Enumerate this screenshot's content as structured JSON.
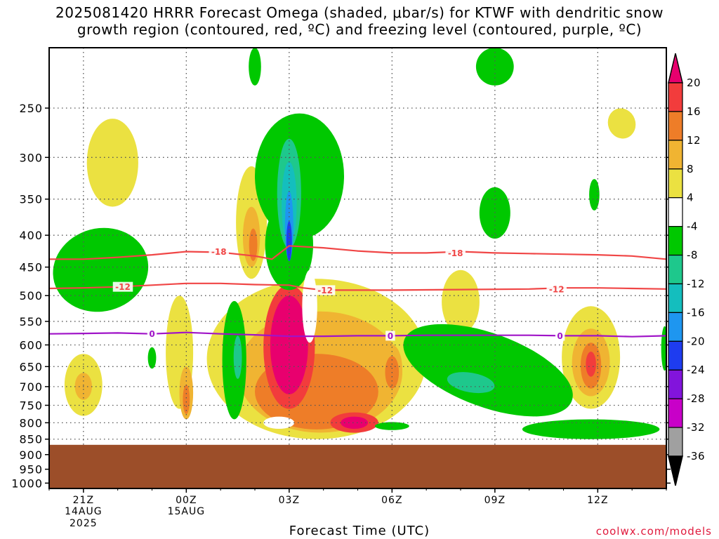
{
  "title": {
    "line1": "2025081420 HRRR Forecast Omega (shaded, μbar/s) for KTWF with dendritic snow",
    "line2": "growth region (contoured, red, ºC) and freezing level (contoured, purple, ºC)"
  },
  "x_axis_title": "Forecast Time (UTC)",
  "credit": "coolwx.com/models",
  "chart_data": {
    "type": "heatmap",
    "x_ticks": [
      {
        "label": "21Z",
        "sub1": "14AUG",
        "sub2": "2025",
        "hour": 0
      },
      {
        "label": "00Z",
        "sub1": "15AUG",
        "sub2": "",
        "hour": 3
      },
      {
        "label": "03Z",
        "sub1": "",
        "sub2": "",
        "hour": 6
      },
      {
        "label": "06Z",
        "sub1": "",
        "sub2": "",
        "hour": 9
      },
      {
        "label": "09Z",
        "sub1": "",
        "sub2": "",
        "hour": 12
      },
      {
        "label": "12Z",
        "sub1": "",
        "sub2": "",
        "hour": 15
      }
    ],
    "x_range_hours": [
      -1,
      17
    ],
    "y_ticks": [
      250,
      300,
      350,
      400,
      450,
      500,
      550,
      600,
      650,
      700,
      750,
      800,
      850,
      900,
      950,
      1000
    ],
    "y_range_hpa": [
      200,
      1020
    ],
    "log_pressure_axis": true,
    "surface_pressure_hpa": 868,
    "colorbar": {
      "labels": [
        "20",
        "16",
        "12",
        "8",
        "4",
        "-4",
        "-8",
        "-12",
        "-16",
        "-20",
        "-24",
        "-28",
        "-32",
        "-36"
      ],
      "colors": [
        "#e8006e",
        "#f23c3c",
        "#ee7d28",
        "#f0b432",
        "#ebe141",
        "#ffffff",
        "#00c800",
        "#1ec88c",
        "#14bebe",
        "#1e96f0",
        "#1e3cf0",
        "#8214dc",
        "#c800c8",
        "#a0a0a0",
        "#000000"
      ]
    },
    "isotherm_labels": {
      "minus18": "-18",
      "minus12": "-12",
      "zero": "0"
    },
    "isotherms": [
      {
        "value": -18,
        "color": "#f04646",
        "points": [
          [
            -1,
            437
          ],
          [
            0,
            437
          ],
          [
            1,
            434
          ],
          [
            2,
            430
          ],
          [
            3,
            425
          ],
          [
            4,
            426
          ],
          [
            5,
            432
          ],
          [
            5.5,
            437
          ],
          [
            6,
            416
          ],
          [
            7,
            419
          ],
          [
            8,
            424
          ],
          [
            9,
            427
          ],
          [
            10,
            427
          ],
          [
            11,
            425
          ],
          [
            12,
            427
          ],
          [
            13,
            428
          ],
          [
            14,
            429
          ],
          [
            15,
            430
          ],
          [
            16,
            432
          ],
          [
            17,
            437
          ]
        ]
      },
      {
        "value": -12,
        "color": "#f04646",
        "points": [
          [
            -1,
            487
          ],
          [
            0,
            486
          ],
          [
            1,
            484
          ],
          [
            2,
            481
          ],
          [
            3,
            478
          ],
          [
            4,
            478
          ],
          [
            5,
            480
          ],
          [
            6,
            481
          ],
          [
            6.4,
            486
          ],
          [
            7,
            490
          ],
          [
            9,
            490
          ],
          [
            11,
            489
          ],
          [
            13,
            488
          ],
          [
            14,
            486
          ],
          [
            15,
            486
          ],
          [
            16,
            487
          ],
          [
            17,
            488
          ]
        ]
      },
      {
        "value": 0,
        "color": "#a014c8",
        "points": [
          [
            -1,
            576
          ],
          [
            0,
            575
          ],
          [
            1,
            574
          ],
          [
            2,
            576
          ],
          [
            3,
            573
          ],
          [
            4,
            576
          ],
          [
            5,
            578
          ],
          [
            6,
            581
          ],
          [
            7,
            581
          ],
          [
            8,
            580
          ],
          [
            9,
            580
          ],
          [
            10,
            579
          ],
          [
            11,
            579
          ],
          [
            12,
            579
          ],
          [
            13,
            579
          ],
          [
            14,
            580
          ],
          [
            15,
            580
          ],
          [
            16,
            582
          ],
          [
            17,
            580
          ]
        ]
      }
    ],
    "isotherm_label_positions": [
      {
        "key": "minus18",
        "hour": 3.95,
        "p": 425
      },
      {
        "key": "minus18",
        "hour": 10.85,
        "p": 427
      },
      {
        "key": "minus12",
        "hour": 1.15,
        "p": 484
      },
      {
        "key": "minus12",
        "hour": 7.05,
        "p": 490
      },
      {
        "key": "minus12",
        "hour": 13.8,
        "p": 488
      },
      {
        "key": "zero",
        "hour": 2.0,
        "p": 576
      },
      {
        "key": "zero",
        "hour": 8.95,
        "p": 580
      },
      {
        "key": "zero",
        "hour": 13.9,
        "p": 580
      }
    ],
    "omega_features": [
      {
        "value": 4,
        "hour": 0.85,
        "p": 310,
        "rh": 0.75,
        "rp": 50,
        "rot": 0
      },
      {
        "value": 4,
        "hour": 2.8,
        "p": 630,
        "rh": 0.4,
        "rp": 130,
        "rot": 0
      },
      {
        "value": 4,
        "hour": 0.0,
        "p": 700,
        "rh": 0.55,
        "rp": 80,
        "rot": 0
      },
      {
        "value": 8,
        "hour": 0.0,
        "p": 700,
        "rh": 0.25,
        "rp": 35,
        "rot": 0
      },
      {
        "value": 8,
        "hour": 3.0,
        "p": 720,
        "rh": 0.2,
        "rp": 70,
        "rot": 0
      },
      {
        "value": 12,
        "hour": 3.0,
        "p": 735,
        "rh": 0.1,
        "rp": 40,
        "rot": 0
      },
      {
        "value": 4,
        "hour": 4.9,
        "p": 390,
        "rh": 0.45,
        "rp": 80,
        "rot": 0
      },
      {
        "value": 8,
        "hour": 4.9,
        "p": 405,
        "rh": 0.25,
        "rp": 45,
        "rot": 0
      },
      {
        "value": 12,
        "hour": 4.95,
        "p": 415,
        "rh": 0.12,
        "rp": 25,
        "rot": 0
      },
      {
        "value": 4,
        "hour": 6.8,
        "p": 660,
        "rh": 3.2,
        "rp": 190,
        "rot": 0
      },
      {
        "value": 4,
        "hour": 8.8,
        "p": 650,
        "rh": 0.8,
        "rp": 120,
        "rot": 0
      },
      {
        "value": 8,
        "hour": 6.9,
        "p": 680,
        "rh": 2.4,
        "rp": 150,
        "rot": 0
      },
      {
        "value": 12,
        "hour": 6.8,
        "p": 720,
        "rh": 1.8,
        "rp": 100,
        "rot": 0
      },
      {
        "value": 16,
        "hour": 6.0,
        "p": 620,
        "rh": 0.75,
        "rp": 140,
        "rot": 0
      },
      {
        "value": 20,
        "hour": 6.0,
        "p": 610,
        "rh": 0.55,
        "rp": 110,
        "rot": 0
      },
      {
        "value": 16,
        "hour": 7.9,
        "p": 800,
        "rh": 0.7,
        "rp": 30,
        "rot": 0
      },
      {
        "value": 20,
        "hour": 7.9,
        "p": 800,
        "rh": 0.4,
        "rp": 18,
        "rot": 0
      },
      {
        "value": 8,
        "hour": 9.0,
        "p": 660,
        "rh": 0.3,
        "rp": 60,
        "rot": 0
      },
      {
        "value": 12,
        "hour": 9.0,
        "p": 665,
        "rh": 0.2,
        "rp": 40,
        "rot": 0
      },
      {
        "value": 4,
        "hour": 11.0,
        "p": 515,
        "rh": 0.55,
        "rp": 60,
        "rot": 0
      },
      {
        "value": 4,
        "hour": 15.7,
        "p": 265,
        "rh": 0.4,
        "rp": 15,
        "rot": -20
      },
      {
        "value": 4,
        "hour": 14.8,
        "p": 640,
        "rh": 0.85,
        "rp": 120,
        "rot": 0
      },
      {
        "value": 8,
        "hour": 14.8,
        "p": 645,
        "rh": 0.55,
        "rp": 80,
        "rot": 0
      },
      {
        "value": 12,
        "hour": 14.8,
        "p": 650,
        "rh": 0.3,
        "rp": 55,
        "rot": 0
      },
      {
        "value": 16,
        "hour": 14.8,
        "p": 645,
        "rh": 0.15,
        "rp": 30,
        "rot": 0
      },
      {
        "value": -4,
        "hour": 0.5,
        "p": 460,
        "rh": 1.4,
        "rp": 70,
        "rot": -15
      },
      {
        "value": -8,
        "hour": 0.3,
        "p": 475,
        "rh": 0.6,
        "rp": 30,
        "rot": 0
      },
      {
        "value": -4,
        "hour": 4.4,
        "p": 650,
        "rh": 0.35,
        "rp": 140,
        "rot": 0
      },
      {
        "value": -8,
        "hour": 4.5,
        "p": 640,
        "rh": 0.22,
        "rp": 100,
        "rot": 0
      },
      {
        "value": -12,
        "hour": 4.5,
        "p": 630,
        "rh": 0.12,
        "rp": 50,
        "rot": 0
      },
      {
        "value": -4,
        "hour": 6.3,
        "p": 330,
        "rh": 1.3,
        "rp": 75,
        "rot": 0
      },
      {
        "value": -4,
        "hour": 6.0,
        "p": 420,
        "rh": 0.7,
        "rp": 70,
        "rot": 0
      },
      {
        "value": -8,
        "hour": 6.1,
        "p": 330,
        "rh": 0.9,
        "rp": 50,
        "rot": 0
      },
      {
        "value": -12,
        "hour": 6.0,
        "p": 350,
        "rh": 0.35,
        "rp": 70,
        "rot": 0
      },
      {
        "value": -16,
        "hour": 6.0,
        "p": 360,
        "rh": 0.22,
        "rp": 55,
        "rot": 0
      },
      {
        "value": -20,
        "hour": 6.0,
        "p": 390,
        "rh": 0.12,
        "rp": 50,
        "rot": 0
      },
      {
        "value": -24,
        "hour": 6.0,
        "p": 410,
        "rh": 0.08,
        "rp": 30,
        "rot": 0
      },
      {
        "value": -4,
        "hour": 12.0,
        "p": 370,
        "rh": 0.45,
        "rp": 35,
        "rot": 0
      },
      {
        "value": -4,
        "hour": 12.0,
        "p": 215,
        "rh": 0.55,
        "rp": 15,
        "rot": 0
      },
      {
        "value": -4,
        "hour": 14.9,
        "p": 345,
        "rh": 0.15,
        "rp": 20,
        "rot": 0
      },
      {
        "value": -4,
        "hour": 11.8,
        "p": 665,
        "rh": 2.6,
        "rp": 90,
        "rot": 20
      },
      {
        "value": -8,
        "hour": 11.4,
        "p": 680,
        "rh": 1.2,
        "rp": 45,
        "rot": 15
      },
      {
        "value": -12,
        "hour": 11.3,
        "p": 690,
        "rh": 0.7,
        "rp": 25,
        "rot": 10
      },
      {
        "value": -4,
        "hour": 14.8,
        "p": 820,
        "rh": 2.0,
        "rp": 30,
        "rot": 0
      },
      {
        "value": -8,
        "hour": 14.7,
        "p": 820,
        "rh": 1.0,
        "rp": 15,
        "rot": 0
      },
      {
        "value": -4,
        "hour": 9.0,
        "p": 810,
        "rh": 0.5,
        "rp": 12,
        "rot": 0
      },
      {
        "value": -4,
        "hour": 2.0,
        "p": 630,
        "rh": 0.12,
        "rp": 25,
        "rot": 0
      },
      {
        "value": -4,
        "hour": 5.0,
        "p": 215,
        "rh": 0.18,
        "rp": 15,
        "rot": 0
      },
      {
        "value": -4,
        "hour": 16.95,
        "p": 610,
        "rh": 0.1,
        "rp": 50,
        "rot": 0
      }
    ],
    "zero_holes": [
      {
        "hour": 5.7,
        "p": 800,
        "rh": 0.45,
        "rp": 18
      },
      {
        "hour": 6.6,
        "p": 525,
        "rh": 0.22,
        "rp": 70
      }
    ]
  }
}
